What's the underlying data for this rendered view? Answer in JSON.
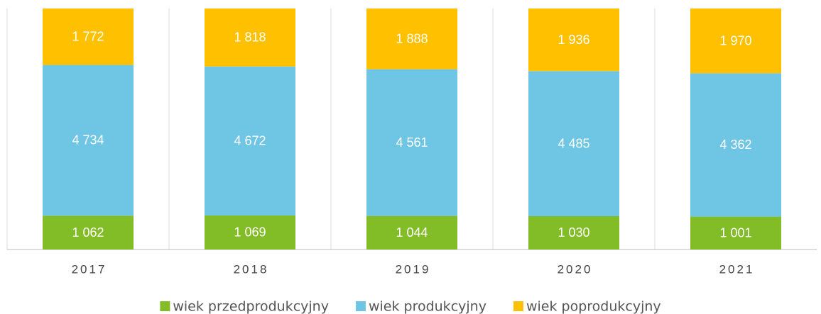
{
  "chart_data": {
    "type": "bar",
    "stacking": "percent",
    "categories": [
      "2017",
      "2018",
      "2019",
      "2020",
      "2021"
    ],
    "series": [
      {
        "name": "wiek przedprodukcyjny",
        "color": "#82bc26",
        "values": [
          1062,
          1069,
          1044,
          1030,
          1001
        ],
        "value_labels": [
          "1 062",
          "1 069",
          "1 044",
          "1 030",
          "1 001"
        ]
      },
      {
        "name": "wiek produkcyjny",
        "color": "#6fc5e4",
        "values": [
          4734,
          4672,
          4561,
          4485,
          4362
        ],
        "value_labels": [
          "4 734",
          "4 672",
          "4 561",
          "4 485",
          "4 362"
        ]
      },
      {
        "name": "wiek poprodukcyjny",
        "color": "#ffc000",
        "values": [
          1772,
          1818,
          1888,
          1936,
          1970
        ],
        "value_labels": [
          "1 772",
          "1 818",
          "1 888",
          "1 936",
          "1 970"
        ]
      }
    ],
    "legend": "bottom"
  }
}
